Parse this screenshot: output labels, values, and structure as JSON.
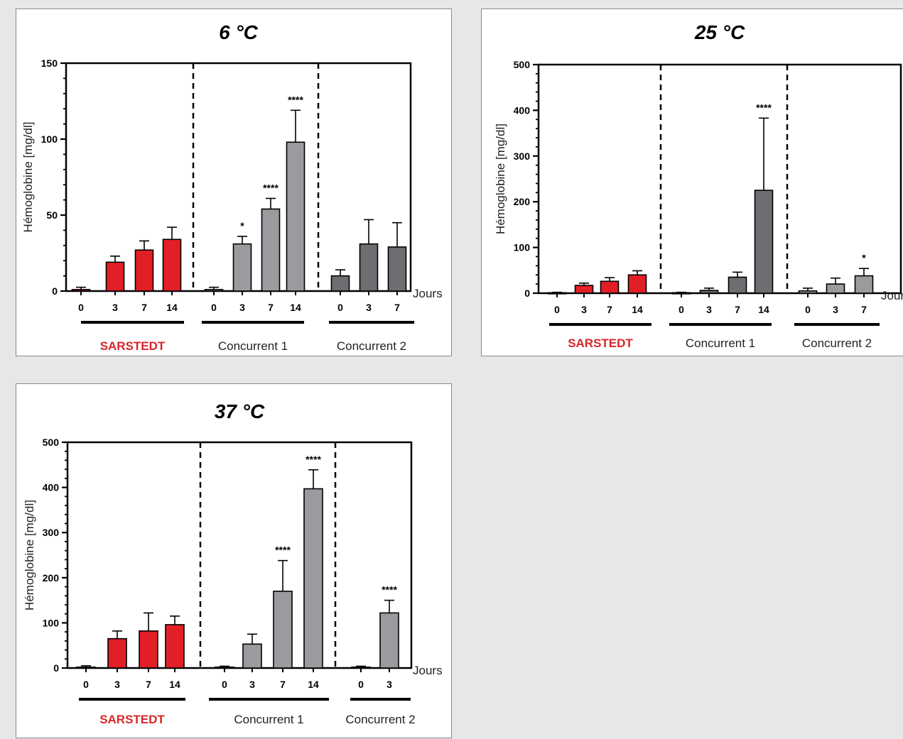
{
  "colors": {
    "brand": "#d8262a",
    "bar_brand": "#e21f26",
    "bar_gray_light": "#9a9b9e",
    "bar_gray_dark": "#6d6e71",
    "background": "#e6e7e8"
  },
  "chart_data": [
    {
      "type": "bar",
      "title": "6 °C",
      "ylabel": "Hémoglobine [mg/dl]",
      "xunit": "Jours",
      "ylim": [
        0,
        150
      ],
      "yticks": [
        0,
        50,
        100,
        150
      ],
      "groups": [
        {
          "name": "SARSTEDT",
          "brand": true,
          "categories": [
            "0",
            "3",
            "7",
            "14"
          ],
          "values": [
            1,
            19,
            27,
            34
          ],
          "errors": [
            1.5,
            4,
            6,
            8
          ],
          "significance": [
            "",
            "",
            "",
            ""
          ],
          "color": "#e21f26"
        },
        {
          "name": "Concurrent 1",
          "brand": false,
          "categories": [
            "0",
            "3",
            "7",
            "14"
          ],
          "values": [
            1,
            31,
            54,
            98
          ],
          "errors": [
            1.5,
            5,
            7,
            21
          ],
          "significance": [
            "",
            "*",
            "****",
            "****"
          ],
          "color": "#9a9b9e"
        },
        {
          "name": "Concurrent 2",
          "brand": false,
          "categories": [
            "0",
            "3",
            "7"
          ],
          "values": [
            10,
            31,
            29
          ],
          "errors": [
            4,
            16,
            16
          ],
          "significance": [
            "",
            "",
            ""
          ],
          "color": "#6d6e71"
        }
      ]
    },
    {
      "type": "bar",
      "title": "25 °C",
      "ylabel": "Hémoglobine [mg/dl]",
      "xunit": "Jours",
      "ylim": [
        0,
        500
      ],
      "yticks": [
        0,
        100,
        200,
        300,
        400,
        500
      ],
      "groups": [
        {
          "name": "SARSTEDT",
          "brand": true,
          "categories": [
            "0",
            "3",
            "7",
            "14"
          ],
          "values": [
            1,
            17,
            26,
            40
          ],
          "errors": [
            1,
            5,
            8,
            9
          ],
          "significance": [
            "",
            "",
            "",
            ""
          ],
          "color": "#e21f26"
        },
        {
          "name": "Concurrent 1",
          "brand": false,
          "categories": [
            "0",
            "3",
            "7",
            "14"
          ],
          "values": [
            1,
            6,
            35,
            225
          ],
          "errors": [
            1,
            5,
            11,
            158
          ],
          "significance": [
            "",
            "",
            "",
            "****"
          ],
          "color": "#6d6e71"
        },
        {
          "name": "Concurrent 2",
          "brand": false,
          "categories": [
            "0",
            "3",
            "7"
          ],
          "values": [
            5,
            20,
            38
          ],
          "errors": [
            6,
            13,
            16
          ],
          "significance": [
            "",
            "",
            "*"
          ],
          "color": "#9a9b9e"
        }
      ]
    },
    {
      "type": "bar",
      "title": "37 °C",
      "ylabel": "Hémoglobine [mg/dl]",
      "xunit": "Jours",
      "ylim": [
        0,
        500
      ],
      "yticks": [
        0,
        100,
        200,
        300,
        400,
        500
      ],
      "groups": [
        {
          "name": "SARSTEDT",
          "brand": true,
          "categories": [
            "0",
            "3",
            "7",
            "14"
          ],
          "values": [
            2,
            65,
            82,
            96
          ],
          "errors": [
            3,
            17,
            40,
            19
          ],
          "significance": [
            "",
            "",
            "",
            ""
          ],
          "color": "#e21f26"
        },
        {
          "name": "Concurrent 1",
          "brand": false,
          "categories": [
            "0",
            "3",
            "7",
            "14"
          ],
          "values": [
            2,
            53,
            170,
            397
          ],
          "errors": [
            2,
            22,
            68,
            42
          ],
          "significance": [
            "",
            "",
            "****",
            "****"
          ],
          "color": "#9a9b9e"
        },
        {
          "name": "Concurrent 2",
          "brand": false,
          "categories": [
            "0",
            "3"
          ],
          "values": [
            2,
            122
          ],
          "errors": [
            2,
            28
          ],
          "significance": [
            "",
            "****"
          ],
          "color": "#9a9b9e"
        }
      ]
    }
  ]
}
